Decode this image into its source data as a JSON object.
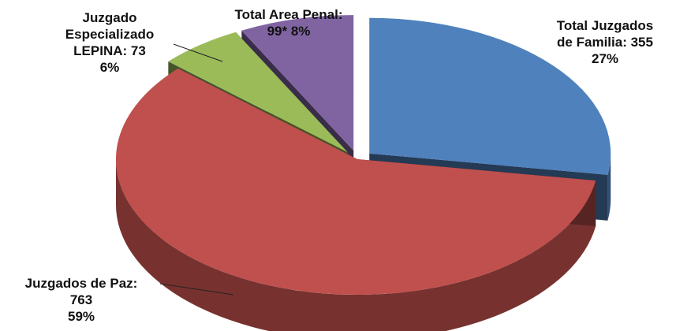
{
  "chart_data": {
    "type": "pie",
    "three_d": true,
    "exploded": true,
    "legend": "none",
    "slices": [
      {
        "lines": [
          "Total Juzgados",
          "de Familia:  355",
          "27%"
        ],
        "value": 355,
        "percent": 27,
        "color": "#4f81bd"
      },
      {
        "lines": [
          "Juzgados de Paz:",
          "763",
          "59%"
        ],
        "value": 763,
        "percent": 59,
        "color": "#c0504d"
      },
      {
        "lines": [
          "Juzgado",
          "Especializado",
          "LEPINA:  73",
          "6%"
        ],
        "value": 73,
        "percent": 6,
        "color": "#9bbb59"
      },
      {
        "lines": [
          "Total Area Penal:",
          "99*  8%"
        ],
        "value": 99,
        "percent": 8,
        "color": "#8064a2"
      }
    ]
  }
}
